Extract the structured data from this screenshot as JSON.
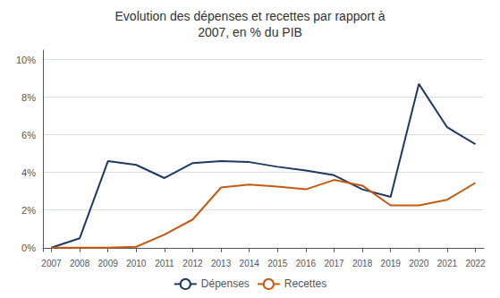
{
  "chart_data": {
    "type": "line",
    "title": "Evolution des dépenses et recettes par rapport à\n2007, en % du PIB",
    "x": [
      2007,
      2008,
      2009,
      2010,
      2011,
      2012,
      2013,
      2014,
      2015,
      2016,
      2017,
      2018,
      2019,
      2020,
      2021,
      2022
    ],
    "series": [
      {
        "name": "Dépenses",
        "color": "#1f3864",
        "values": [
          0.0,
          0.5,
          4.6,
          4.4,
          3.7,
          4.5,
          4.6,
          4.55,
          4.3,
          4.1,
          3.85,
          3.1,
          2.7,
          8.7,
          6.4,
          5.5
        ]
      },
      {
        "name": "Recettes",
        "color": "#c55a11",
        "values": [
          0.0,
          0.0,
          0.0,
          0.05,
          0.7,
          1.5,
          3.2,
          3.35,
          3.25,
          3.1,
          3.6,
          3.3,
          2.25,
          2.25,
          2.55,
          3.45
        ]
      }
    ],
    "xlim": [
      2006.7,
      2022.3
    ],
    "xticks": [
      2007,
      2008,
      2009,
      2010,
      2011,
      2012,
      2013,
      2014,
      2015,
      2016,
      2017,
      2018,
      2019,
      2020,
      2021,
      2022
    ],
    "ylim": [
      -0.2,
      10.5
    ],
    "yticks": [
      {
        "value": 0,
        "label": "0%"
      },
      {
        "value": 2,
        "label": "2%"
      },
      {
        "value": 4,
        "label": "4%"
      },
      {
        "value": 6,
        "label": "6%"
      },
      {
        "value": 8,
        "label": "8%"
      },
      {
        "value": 10,
        "label": "10%"
      }
    ],
    "grid": true,
    "legend": "bottom"
  }
}
